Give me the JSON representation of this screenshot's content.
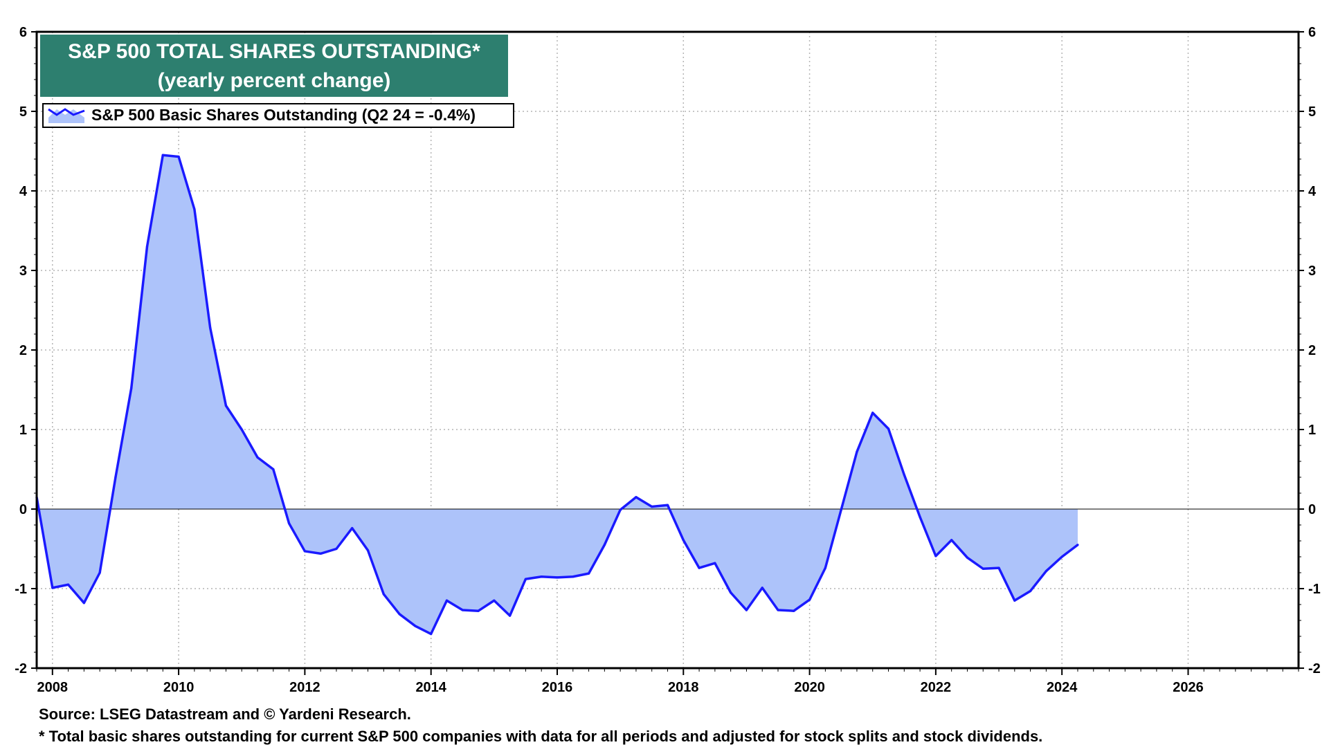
{
  "chart_data": {
    "type": "area",
    "title": "S&P 500 TOTAL SHARES OUTSTANDING*",
    "subtitle": "(yearly percent change)",
    "legend": {
      "position": "top-left",
      "entries": [
        "S&P 500 Basic Shares Outstanding (Q2 24 = -0.4%)"
      ]
    },
    "xlim": [
      2007.75,
      2027.75
    ],
    "ylim": [
      -2,
      6
    ],
    "x_ticks": [
      "2008",
      "2010",
      "2012",
      "2014",
      "2016",
      "2018",
      "2020",
      "2022",
      "2024",
      "2026"
    ],
    "y_ticks_left": [
      "6",
      "5",
      "4",
      "3",
      "2",
      "1",
      "0",
      "-1",
      "-2"
    ],
    "y_ticks_right": [
      "6",
      "5",
      "4",
      "3",
      "2",
      "1",
      "0",
      "-1",
      "-2"
    ],
    "grid": true,
    "series": [
      {
        "name": "S&P 500 Basic Shares Outstanding (Q2 24 = -0.4%)",
        "color": "#1a1aff",
        "fill": "#adc3fa",
        "x": [
          2007.75,
          2008.0,
          2008.25,
          2008.5,
          2008.75,
          2009.0,
          2009.25,
          2009.5,
          2009.75,
          2010.0,
          2010.25,
          2010.5,
          2010.75,
          2011.0,
          2011.25,
          2011.5,
          2011.75,
          2012.0,
          2012.25,
          2012.5,
          2012.75,
          2013.0,
          2013.25,
          2013.5,
          2013.75,
          2014.0,
          2014.25,
          2014.5,
          2014.75,
          2015.0,
          2015.25,
          2015.5,
          2015.75,
          2016.0,
          2016.25,
          2016.5,
          2016.75,
          2017.0,
          2017.25,
          2017.5,
          2017.75,
          2018.0,
          2018.25,
          2018.5,
          2018.75,
          2019.0,
          2019.25,
          2019.5,
          2019.75,
          2020.0,
          2020.25,
          2020.5,
          2020.75,
          2021.0,
          2021.25,
          2021.5,
          2021.75,
          2022.0,
          2022.25,
          2022.5,
          2022.75,
          2023.0,
          2023.25,
          2023.5,
          2023.75,
          2024.0,
          2024.25
        ],
        "values": [
          0.15,
          -0.99,
          -0.95,
          -1.18,
          -0.8,
          0.4,
          1.52,
          3.3,
          4.45,
          4.43,
          3.77,
          2.28,
          1.3,
          1.0,
          0.65,
          0.5,
          -0.18,
          -0.53,
          -0.56,
          -0.5,
          -0.24,
          -0.52,
          -1.07,
          -1.32,
          -1.47,
          -1.57,
          -1.15,
          -1.27,
          -1.28,
          -1.15,
          -1.34,
          -0.88,
          -0.85,
          -0.86,
          -0.85,
          -0.81,
          -0.45,
          -0.01,
          0.15,
          0.03,
          0.05,
          -0.39,
          -0.74,
          -0.68,
          -1.05,
          -1.27,
          -0.99,
          -1.27,
          -1.28,
          -1.14,
          -0.74,
          -0.01,
          0.72,
          1.21,
          1.01,
          0.43,
          -0.1,
          -0.59,
          -0.39,
          -0.61,
          -0.75,
          -0.74,
          -1.15,
          -1.03,
          -0.78,
          -0.6,
          -0.45
        ]
      }
    ]
  },
  "footer": {
    "source": "Source: LSEG Datastream and © Yardeni Research.",
    "note": "* Total basic shares outstanding for current S&P 500 companies with data for all periods and adjusted for stock splits and stock dividends."
  },
  "colors": {
    "title_bg": "#2d7f6f",
    "line": "#1a1aff",
    "fill": "#adc3fa",
    "grid": "#b4b4b4"
  }
}
